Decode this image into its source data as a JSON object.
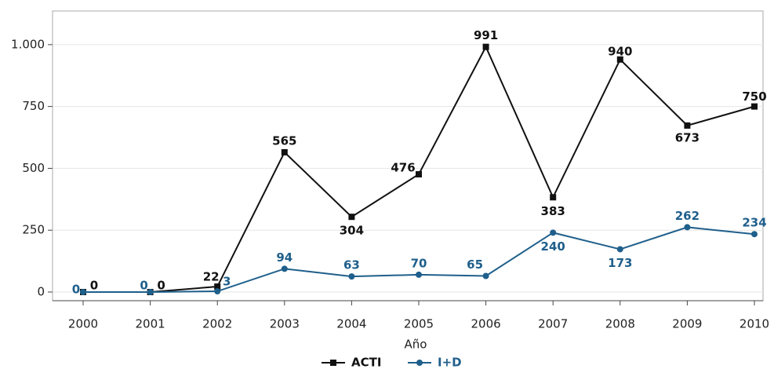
{
  "chart_data": {
    "type": "line",
    "x_label": "Año",
    "categories": [
      "2000",
      "2001",
      "2002",
      "2003",
      "2004",
      "2005",
      "2006",
      "2007",
      "2008",
      "2009",
      "2010"
    ],
    "series": [
      {
        "name": "ACTI",
        "color": "#111111",
        "marker": "square",
        "values": [
          0,
          0,
          22,
          565,
          304,
          476,
          991,
          383,
          940,
          673,
          750
        ]
      },
      {
        "name": "I+D",
        "color": "#1f5f8b",
        "marker": "circle",
        "values": [
          0,
          0,
          3,
          94,
          63,
          70,
          65,
          240,
          173,
          262,
          234
        ]
      }
    ],
    "ylim": [
      -35,
      1136
    ],
    "yticks": [
      0,
      250,
      500,
      750,
      {
        "value": 1000,
        "label": "1.000"
      }
    ],
    "grid": true,
    "legend": "bottom"
  }
}
